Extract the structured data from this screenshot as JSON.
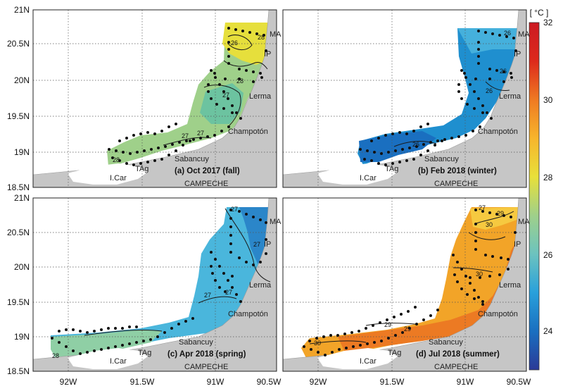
{
  "figure": {
    "colorbar": {
      "unit": "[ °C ]",
      "ticks": [
        "32",
        "30",
        "28",
        "26",
        "24"
      ]
    },
    "lat_ticks": [
      "21N",
      "20.5N",
      "20N",
      "19.5N",
      "19N",
      "18.5N"
    ],
    "lon_ticks": [
      "92W",
      "91.5W",
      "91W",
      "90.5W"
    ],
    "place_labels": {
      "ma": "MA",
      "ip": "IP",
      "lerma": "Lerma",
      "champoton": "Champotón",
      "sabancuy": "Sabancuy",
      "tag": "TAg",
      "icar": "I.Car",
      "campeche": "CAMPECHE"
    },
    "panels": [
      {
        "title": "(a) Oct 2017 (fall)",
        "contours": [
          "26",
          "28",
          "28",
          "27",
          "27",
          "27",
          "28"
        ]
      },
      {
        "title": "(b) Feb 2018 (winter)",
        "contours": [
          "26",
          "26",
          "26",
          "26"
        ]
      },
      {
        "title": "(c) Apr 2018 (spring)",
        "contours": [
          "27",
          "27",
          "27",
          "27",
          "28"
        ]
      },
      {
        "title": "(d) Jul 2018 (summer)",
        "contours": [
          "27",
          "29",
          "30",
          "29",
          "29",
          "30",
          "30"
        ]
      }
    ]
  },
  "chart_data": [
    {
      "type": "heatmap",
      "title": "(a) Oct 2017 (fall)",
      "xlabel": "",
      "ylabel": "",
      "x_ticks": [
        "92W",
        "91.5W",
        "91W",
        "90.5W"
      ],
      "y_ticks": [
        "21N",
        "20.5N",
        "20N",
        "19.5N",
        "19N",
        "18.5N"
      ],
      "xlim": [
        -92.3,
        -90.45
      ],
      "ylim": [
        18.5,
        21.0
      ],
      "grid": true,
      "colorscale": {
        "min": 23,
        "max": 32,
        "unit": "°C"
      },
      "temperature_range": [
        26.5,
        29.5
      ],
      "contour_levels": [
        26,
        27,
        28
      ]
    },
    {
      "type": "heatmap",
      "title": "(b) Feb 2018 (winter)",
      "xlabel": "",
      "ylabel": "",
      "x_ticks": [
        "92W",
        "91.5W",
        "91W",
        "90.5W"
      ],
      "y_ticks": [
        "21N",
        "20.5N",
        "20N",
        "19.5N",
        "19N",
        "18.5N"
      ],
      "xlim": [
        -92.3,
        -90.45
      ],
      "ylim": [
        18.5,
        21.0
      ],
      "grid": true,
      "colorscale": {
        "min": 23,
        "max": 32,
        "unit": "°C"
      },
      "temperature_range": [
        25.0,
        26.5
      ],
      "contour_levels": [
        26
      ]
    },
    {
      "type": "heatmap",
      "title": "(c) Apr 2018 (spring)",
      "xlabel": "",
      "ylabel": "",
      "x_ticks": [
        "92W",
        "91.5W",
        "91W",
        "90.5W"
      ],
      "y_ticks": [
        "21N",
        "20.5N",
        "20N",
        "19.5N",
        "19N",
        "18.5N"
      ],
      "xlim": [
        -92.3,
        -90.45
      ],
      "ylim": [
        18.5,
        21.0
      ],
      "grid": true,
      "colorscale": {
        "min": 23,
        "max": 32,
        "unit": "°C"
      },
      "temperature_range": [
        26.0,
        28.5
      ],
      "contour_levels": [
        27,
        28
      ]
    },
    {
      "type": "heatmap",
      "title": "(d) Jul 2018 (summer)",
      "xlabel": "",
      "ylabel": "",
      "x_ticks": [
        "92W",
        "91.5W",
        "91W",
        "90.5W"
      ],
      "y_ticks": [
        "21N",
        "20.5N",
        "20N",
        "19.5N",
        "19N",
        "18.5N"
      ],
      "xlim": [
        -92.3,
        -90.45
      ],
      "ylim": [
        18.5,
        21.0
      ],
      "grid": true,
      "colorscale": {
        "min": 23,
        "max": 32,
        "unit": "°C"
      },
      "temperature_range": [
        27.0,
        31.0
      ],
      "contour_levels": [
        27,
        29,
        30
      ]
    }
  ],
  "colors": {
    "land": "#c6c6c6",
    "coast_white": "#ffffff",
    "a_main": "#9fd08a",
    "a_warm": "#e6df3c",
    "a_cool": "#6cc3a0",
    "b_main": "#1f8fcf",
    "b_deep": "#1a6fc0",
    "b_light": "#45b0dc",
    "c_main": "#4ab6dc",
    "c_cool": "#2b86c9",
    "c_green": "#8fcfa5",
    "d_main": "#f2a428",
    "d_hot": "#ec7a23",
    "d_light": "#f6c940",
    "colorbar_stops": [
      "#2b3a97",
      "#1a6fc0",
      "#29a0db",
      "#6cc3bf",
      "#9fd08a",
      "#e8e03a",
      "#f7b52c",
      "#ef7a22",
      "#dd2a1c",
      "#cc1a22"
    ]
  }
}
